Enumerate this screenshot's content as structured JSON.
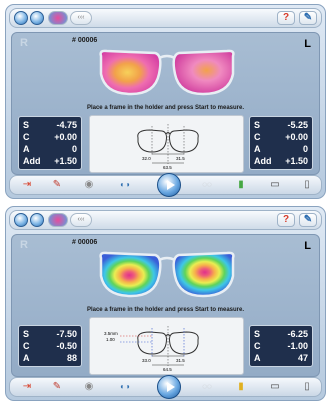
{
  "screens": [
    {
      "job_number": "# 00006",
      "side_right": "R",
      "side_left": "L",
      "message": "Place a frame in the holder and press Start to measure.",
      "right_lens": {
        "S": "-4.75",
        "C": "+0.00",
        "A": "0",
        "Add": "+1.50"
      },
      "left_lens": {
        "S": "-5.25",
        "C": "+0.00",
        "A": "0",
        "Add": "+1.50"
      },
      "diagram": {
        "pd_right": "32.0",
        "pd_left": "31.5",
        "bridge": "63.5",
        "left_label": "",
        "left_label2": ""
      }
    },
    {
      "job_number": "# 00006",
      "side_right": "R",
      "side_left": "L",
      "message": "Place a frame in the holder and press Start to measure.",
      "right_lens": {
        "S": "-7.50",
        "C": "-0.50",
        "A": "88"
      },
      "left_lens": {
        "S": "-6.25",
        "C": "-1.00",
        "A": "47"
      },
      "diagram": {
        "pd_right": "33.0",
        "pd_left": "31.5",
        "bridge": "64.5",
        "left_label": "3.5mm",
        "left_label2": "1.00"
      }
    }
  ],
  "labels": {
    "S": "S",
    "C": "C",
    "A": "A",
    "Add": "Add"
  },
  "topbar": {
    "help": "?",
    "tools_icon": "wrench-icon"
  },
  "colors": {
    "panel": "#c9d8e8",
    "rx_box": "#1f2f4c",
    "accent": "#2e6fb0"
  }
}
